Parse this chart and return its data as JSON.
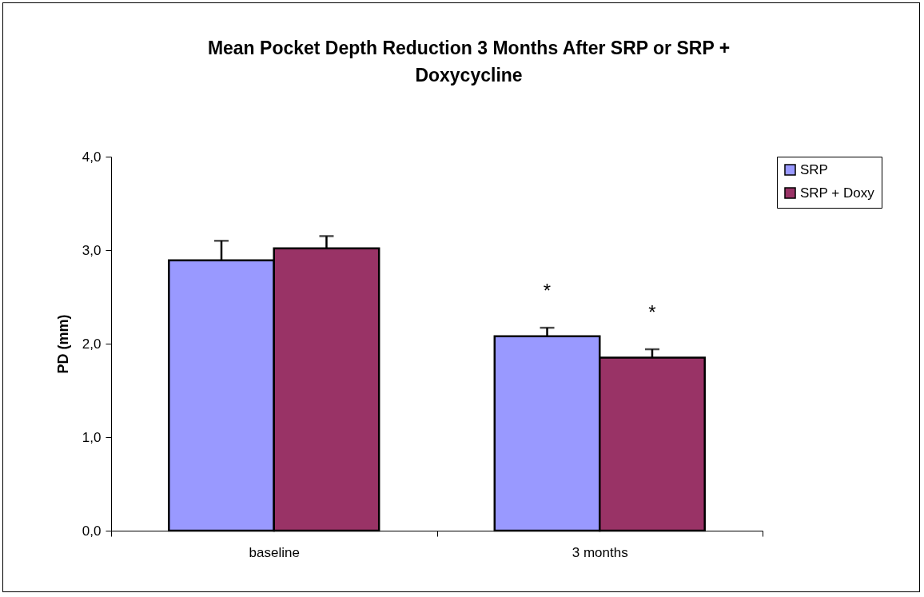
{
  "chart_data": {
    "type": "bar",
    "title": [
      "Mean Pocket Depth Reduction 3 Months After SRP or SRP +",
      "Doxycycline"
    ],
    "ylabel": "PD (mm)",
    "categories": [
      "baseline",
      "3 months"
    ],
    "series": [
      {
        "name": "SRP",
        "color": "#9999ff",
        "values": [
          2.89,
          2.08
        ],
        "errors": [
          [
            2.89,
            3.1
          ],
          [
            2.08,
            2.17
          ]
        ]
      },
      {
        "name": "SRP + Doxy",
        "color": "#993366",
        "values": [
          3.02,
          1.85
        ],
        "errors": [
          [
            3.02,
            3.15
          ],
          [
            1.85,
            1.94
          ]
        ]
      }
    ],
    "ylim": [
      0,
      4
    ],
    "yticks": [
      {
        "value": 0,
        "label": "0,0"
      },
      {
        "value": 1,
        "label": "1,0"
      },
      {
        "value": 2,
        "label": "2,0"
      },
      {
        "value": 3,
        "label": "3,0"
      },
      {
        "value": 4,
        "label": "4,0"
      }
    ],
    "annotations": [
      "*",
      "*"
    ],
    "grid": false,
    "legend": "right"
  }
}
